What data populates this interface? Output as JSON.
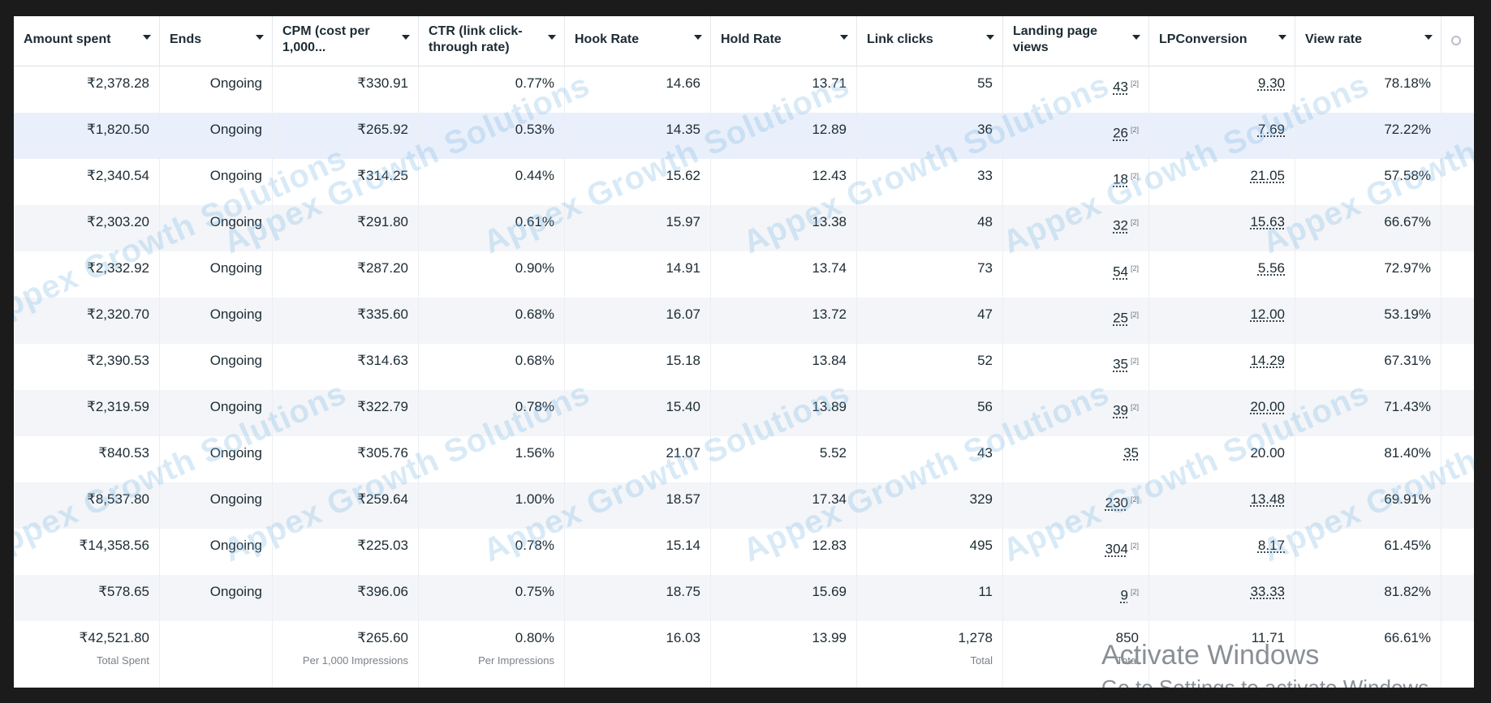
{
  "columns": [
    {
      "label": "Amount spent"
    },
    {
      "label": "Ends"
    },
    {
      "label": "CPM (cost per 1,000..."
    },
    {
      "label": "CTR (link click-through rate)"
    },
    {
      "label": "Hook Rate"
    },
    {
      "label": "Hold Rate"
    },
    {
      "label": "Link clicks"
    },
    {
      "label": "Landing page views"
    },
    {
      "label": "LPConversion"
    },
    {
      "label": "View rate"
    }
  ],
  "rows": [
    {
      "amount": "₹2,378.28",
      "ends": "Ongoing",
      "cpm": "₹330.91",
      "ctr": "0.77%",
      "hook": "14.66",
      "hold": "13.71",
      "clicks": "55",
      "lpv": "43",
      "lpc": "9.30",
      "view": "78.18%"
    },
    {
      "amount": "₹1,820.50",
      "ends": "Ongoing",
      "cpm": "₹265.92",
      "ctr": "0.53%",
      "hook": "14.35",
      "hold": "12.89",
      "clicks": "36",
      "lpv": "26",
      "lpc": "7.69",
      "view": "72.22%"
    },
    {
      "amount": "₹2,340.54",
      "ends": "Ongoing",
      "cpm": "₹314.25",
      "ctr": "0.44%",
      "hook": "15.62",
      "hold": "12.43",
      "clicks": "33",
      "lpv": "18",
      "lpc": "21.05",
      "view": "57.58%"
    },
    {
      "amount": "₹2,303.20",
      "ends": "Ongoing",
      "cpm": "₹291.80",
      "ctr": "0.61%",
      "hook": "15.97",
      "hold": "13.38",
      "clicks": "48",
      "lpv": "32",
      "lpc": "15.63",
      "view": "66.67%"
    },
    {
      "amount": "₹2,332.92",
      "ends": "Ongoing",
      "cpm": "₹287.20",
      "ctr": "0.90%",
      "hook": "14.91",
      "hold": "13.74",
      "clicks": "73",
      "lpv": "54",
      "lpc": "5.56",
      "view": "72.97%"
    },
    {
      "amount": "₹2,320.70",
      "ends": "Ongoing",
      "cpm": "₹335.60",
      "ctr": "0.68%",
      "hook": "16.07",
      "hold": "13.72",
      "clicks": "47",
      "lpv": "25",
      "lpc": "12.00",
      "view": "53.19%"
    },
    {
      "amount": "₹2,390.53",
      "ends": "Ongoing",
      "cpm": "₹314.63",
      "ctr": "0.68%",
      "hook": "15.18",
      "hold": "13.84",
      "clicks": "52",
      "lpv": "35",
      "lpc": "14.29",
      "view": "67.31%"
    },
    {
      "amount": "₹2,319.59",
      "ends": "Ongoing",
      "cpm": "₹322.79",
      "ctr": "0.78%",
      "hook": "15.40",
      "hold": "13.89",
      "clicks": "56",
      "lpv": "39",
      "lpc": "20.00",
      "view": "71.43%"
    },
    {
      "amount": "₹840.53",
      "ends": "Ongoing",
      "cpm": "₹305.76",
      "ctr": "1.56%",
      "hook": "21.07",
      "hold": "5.52",
      "clicks": "43",
      "lpv": "35",
      "lpc": "20.00",
      "view": "81.40%"
    },
    {
      "amount": "₹8,537.80",
      "ends": "Ongoing",
      "cpm": "₹259.64",
      "ctr": "1.00%",
      "hook": "18.57",
      "hold": "17.34",
      "clicks": "329",
      "lpv": "230",
      "lpc": "13.48",
      "view": "69.91%"
    },
    {
      "amount": "₹14,358.56",
      "ends": "Ongoing",
      "cpm": "₹225.03",
      "ctr": "0.78%",
      "hook": "15.14",
      "hold": "12.83",
      "clicks": "495",
      "lpv": "304",
      "lpc": "8.17",
      "view": "61.45%"
    },
    {
      "amount": "₹578.65",
      "ends": "Ongoing",
      "cpm": "₹396.06",
      "ctr": "0.75%",
      "hook": "18.75",
      "hold": "15.69",
      "clicks": "11",
      "lpv": "9",
      "lpc": "33.33",
      "view": "81.82%"
    }
  ],
  "lpv_note_marker": "[2]",
  "totals": {
    "amount": "₹42,521.80",
    "amount_sub": "Total Spent",
    "cpm": "₹265.60",
    "cpm_sub": "Per 1,000 Impressions",
    "ctr": "0.80%",
    "ctr_sub": "Per Impressions",
    "hook": "16.03",
    "hold": "13.99",
    "clicks": "1,278",
    "clicks_sub": "Total",
    "lpv": "850",
    "lpv_sub": "Total",
    "lpc": "11.71",
    "view": "66.61%"
  },
  "watermark": "Appex Growth Solutions",
  "activate": {
    "title": "Activate Windows",
    "subtitle": "Go to Settings to activate Windows."
  }
}
